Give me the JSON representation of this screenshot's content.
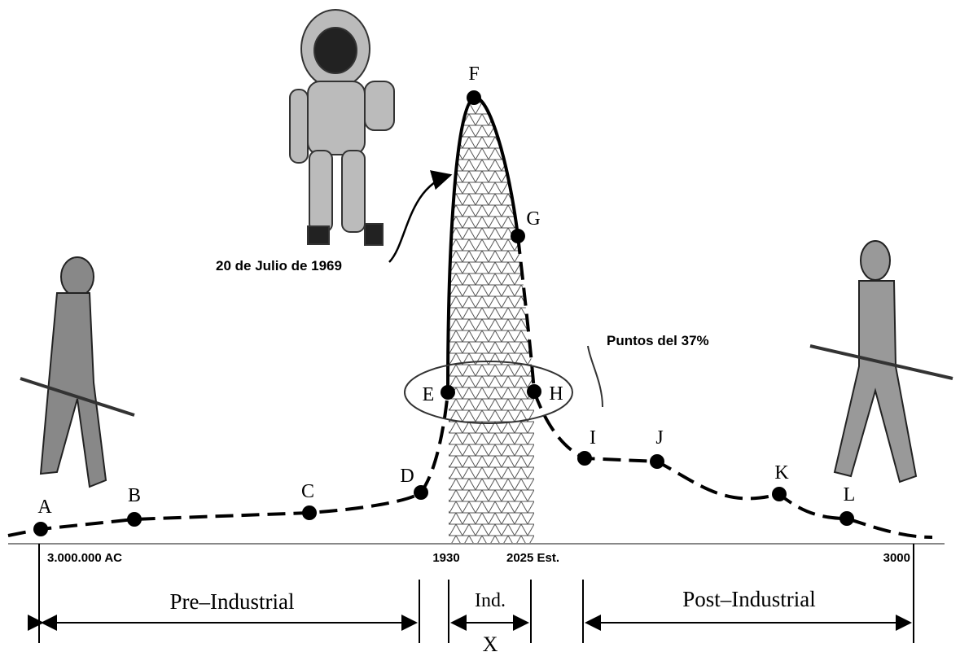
{
  "points": [
    {
      "label": "A"
    },
    {
      "label": "B"
    },
    {
      "label": "C"
    },
    {
      "label": "D"
    },
    {
      "label": "E"
    },
    {
      "label": "F"
    },
    {
      "label": "G"
    },
    {
      "label": "H"
    },
    {
      "label": "I"
    },
    {
      "label": "J"
    },
    {
      "label": "K"
    },
    {
      "label": "L"
    }
  ],
  "annotations": {
    "date": "20 de Julio de 1969",
    "percent": "Puntos del 37%"
  },
  "axis_labels": [
    "3.000.000 AC",
    "1930",
    "2025 Est.",
    "3000"
  ],
  "periods": [
    "Pre–Industrial",
    "Ind.",
    "Post–Industrial"
  ],
  "x_label": "X"
}
